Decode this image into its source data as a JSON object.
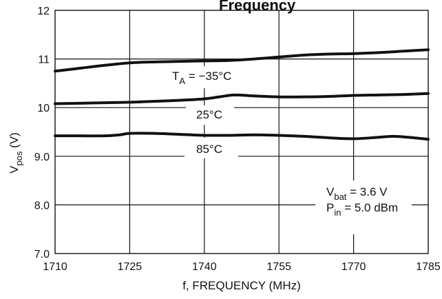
{
  "chart_data": {
    "type": "line",
    "title": "Frequency",
    "xlabel": "f, FREQUENCY (MHz)",
    "ylabel_main": "V",
    "ylabel_sub": "pos",
    "ylabel_suffix": " (V)",
    "xlim": [
      1710,
      1785
    ],
    "ylim": [
      7.0,
      12
    ],
    "x_ticks": [
      1710,
      1725,
      1740,
      1755,
      1770,
      1785
    ],
    "x_tick_labels": [
      "1710",
      "1725",
      "1740",
      "1755",
      "1770",
      "1785"
    ],
    "y_ticks": [
      7.0,
      8.0,
      9.0,
      10,
      11,
      12
    ],
    "y_tick_labels": [
      "7.0",
      "8.0",
      "9.0",
      "10",
      "11",
      "12"
    ],
    "grid": true,
    "series": [
      {
        "name": "T_A = -35°C",
        "x": [
          1710,
          1715,
          1720,
          1725,
          1730,
          1735,
          1740,
          1745,
          1750,
          1755,
          1760,
          1765,
          1770,
          1775,
          1780,
          1785
        ],
        "y": [
          10.75,
          10.81,
          10.87,
          10.92,
          10.94,
          10.95,
          10.96,
          10.97,
          11.0,
          11.04,
          11.08,
          11.1,
          11.11,
          11.13,
          11.16,
          11.19
        ]
      },
      {
        "name": "25°C",
        "x": [
          1710,
          1715,
          1720,
          1725,
          1730,
          1735,
          1740,
          1743,
          1746,
          1750,
          1755,
          1760,
          1765,
          1770,
          1775,
          1780,
          1785
        ],
        "y": [
          10.08,
          10.09,
          10.1,
          10.11,
          10.13,
          10.15,
          10.18,
          10.22,
          10.26,
          10.24,
          10.22,
          10.22,
          10.23,
          10.25,
          10.26,
          10.27,
          10.29
        ]
      },
      {
        "name": "85°C",
        "x": [
          1710,
          1715,
          1720,
          1723,
          1725,
          1730,
          1735,
          1740,
          1745,
          1750,
          1755,
          1760,
          1765,
          1770,
          1775,
          1778,
          1781,
          1785
        ],
        "y": [
          9.42,
          9.42,
          9.42,
          9.44,
          9.47,
          9.47,
          9.45,
          9.43,
          9.43,
          9.44,
          9.43,
          9.41,
          9.38,
          9.36,
          9.39,
          9.41,
          9.39,
          9.35
        ]
      }
    ],
    "annotations": {
      "ta_main": "T",
      "ta_sub": "A",
      "ta_rest": " = −35°C",
      "t25": "25°C",
      "t85": "85°C",
      "vbat_main": "V",
      "vbat_sub": "bat",
      "vbat_rest": " = 3.6 V",
      "pin_main": "P",
      "pin_sub": "in",
      "pin_rest": " = 5.0 dBm"
    }
  }
}
